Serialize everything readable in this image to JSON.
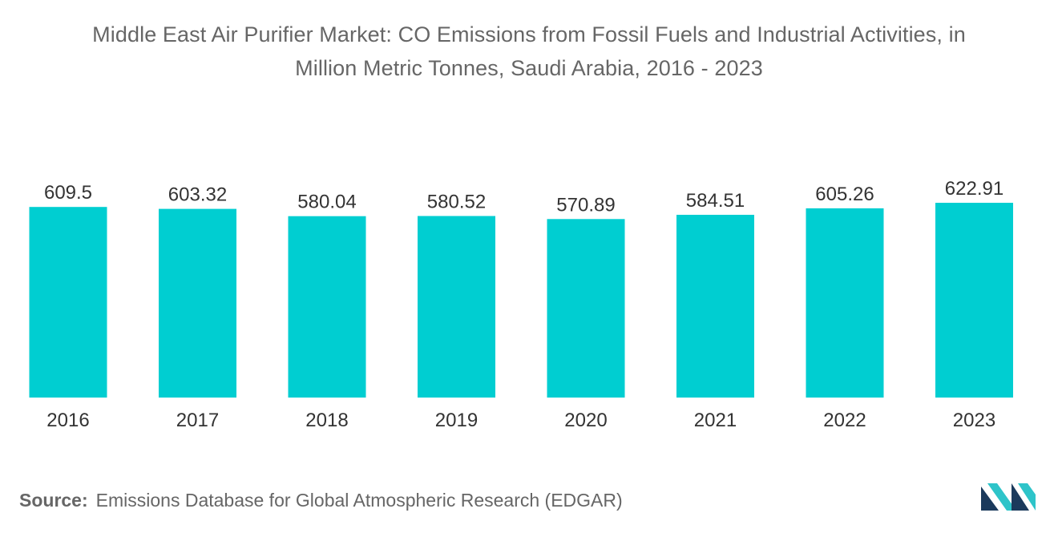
{
  "title_lines": [
    "Middle East Air Purifier Market: CO Emissions from Fossil Fuels and Industrial Activities, in",
    "Million Metric Tonnes, Saudi Arabia, 2016 - 2023"
  ],
  "source": {
    "label": "Source:",
    "text": "Emissions Database for Global Atmospheric Research (EDGAR)"
  },
  "colors": {
    "bar": "#00CED1",
    "text": "#333333",
    "muted": "#666666",
    "logo_dark": "#1B3A5C",
    "logo_light": "#2EC4C9"
  },
  "chart_data": {
    "type": "bar",
    "title": "Middle East Air Purifier Market: CO Emissions from Fossil Fuels and Industrial Activities, in Million Metric Tonnes, Saudi Arabia, 2016 - 2023",
    "categories": [
      "2016",
      "2017",
      "2018",
      "2019",
      "2020",
      "2021",
      "2022",
      "2023"
    ],
    "values": [
      609.5,
      603.32,
      580.04,
      580.52,
      570.89,
      584.51,
      605.26,
      622.91
    ],
    "value_labels": [
      "609.5",
      "603.32",
      "580.04",
      "580.52",
      "570.89",
      "584.51",
      "605.26",
      "622.91"
    ],
    "xlabel": "",
    "ylabel": "",
    "ylim": [
      0,
      622.91
    ],
    "grid": false,
    "legend": "none"
  }
}
